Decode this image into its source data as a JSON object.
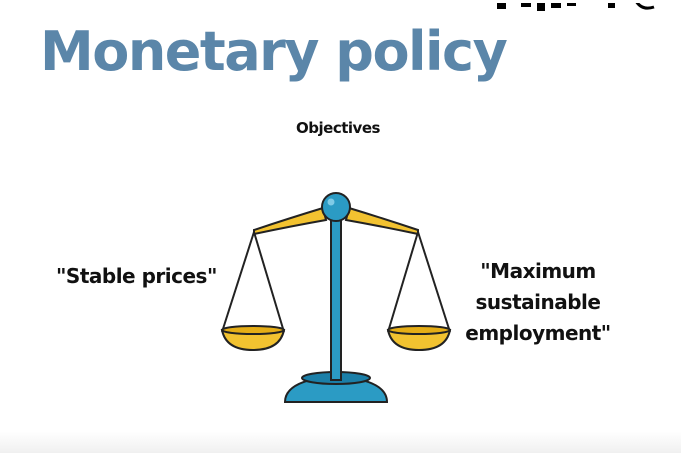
{
  "slide": {
    "title": "Monetary policy",
    "subtitle": "Objectives",
    "left_objective": "\"Stable prices\"",
    "right_objective_lines": [
      "\"Maximum",
      "sustainable",
      "employment\""
    ]
  },
  "illustration": {
    "icon": "balance-scale-icon",
    "colors": {
      "teal": "#2b9bc4",
      "teal_dark": "#1b7fa8",
      "gold": "#f2c230",
      "outline": "#222222"
    }
  }
}
